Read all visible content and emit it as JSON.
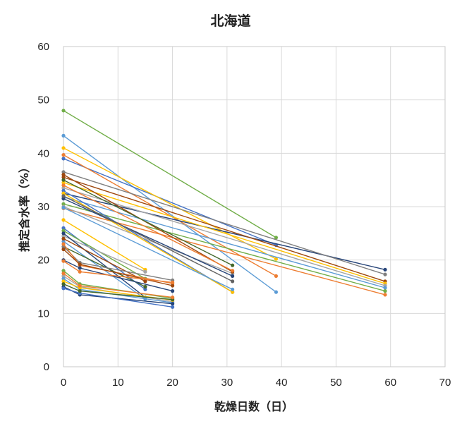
{
  "chart_data": {
    "type": "line",
    "title": "北海道",
    "xlabel": "乾燥日数（日）",
    "ylabel": "推定含水率（%）",
    "xlim": [
      0,
      70
    ],
    "ylim": [
      0,
      60
    ],
    "xticks": [
      0,
      10,
      20,
      30,
      40,
      50,
      60,
      70
    ],
    "yticks": [
      0,
      10,
      20,
      30,
      40,
      50,
      60
    ],
    "grid": true,
    "legend": "none",
    "series": [
      {
        "color": "#70ad47",
        "points": [
          [
            0,
            48
          ],
          [
            39,
            24.2
          ]
        ]
      },
      {
        "color": "#5b9bd5",
        "points": [
          [
            0,
            43.3
          ],
          [
            39,
            14
          ]
        ]
      },
      {
        "color": "#4472c4",
        "points": [
          [
            0,
            39
          ],
          [
            39,
            22.8
          ]
        ]
      },
      {
        "color": "#ffc000",
        "points": [
          [
            0,
            41
          ],
          [
            39,
            20.2
          ]
        ]
      },
      {
        "color": "#ed7d31",
        "points": [
          [
            0,
            39.7
          ],
          [
            39,
            17
          ]
        ]
      },
      {
        "color": "#264478",
        "points": [
          [
            0,
            32.5
          ],
          [
            59,
            18.2
          ]
        ]
      },
      {
        "color": "#7f7f7f",
        "points": [
          [
            0,
            36.5
          ],
          [
            59,
            17.3
          ]
        ]
      },
      {
        "color": "#9e480e",
        "points": [
          [
            0,
            35.5
          ],
          [
            59,
            16
          ]
        ]
      },
      {
        "color": "#ffc000",
        "points": [
          [
            0,
            34.5
          ],
          [
            59,
            15.6
          ]
        ]
      },
      {
        "color": "#a5a5a5",
        "points": [
          [
            0,
            33.5
          ],
          [
            59,
            15.2
          ]
        ]
      },
      {
        "color": "#5b9bd5",
        "points": [
          [
            0,
            31.8
          ],
          [
            59,
            14.8
          ]
        ]
      },
      {
        "color": "#70ad47",
        "points": [
          [
            0,
            30.5
          ],
          [
            59,
            14.2
          ]
        ]
      },
      {
        "color": "#ed7d31",
        "points": [
          [
            0,
            29.7
          ],
          [
            59,
            13.5
          ]
        ]
      },
      {
        "color": "#4472c4",
        "points": [
          [
            0,
            33
          ],
          [
            31,
            14
          ]
        ]
      },
      {
        "color": "#a5a5a5",
        "points": [
          [
            0,
            30
          ],
          [
            31,
            17.5
          ]
        ]
      },
      {
        "color": "#ffc000",
        "points": [
          [
            0,
            32.5
          ],
          [
            31,
            14
          ]
        ]
      },
      {
        "color": "#264478",
        "points": [
          [
            0,
            31.5
          ],
          [
            31,
            17
          ]
        ]
      },
      {
        "color": "#9e480e",
        "points": [
          [
            0,
            36
          ],
          [
            31,
            17.8
          ]
        ]
      },
      {
        "color": "#5b9bd5",
        "points": [
          [
            0,
            29.8
          ],
          [
            31,
            14.5
          ]
        ]
      },
      {
        "color": "#43682b",
        "points": [
          [
            0,
            35
          ],
          [
            31,
            19
          ]
        ]
      },
      {
        "color": "#636363",
        "points": [
          [
            0,
            32
          ],
          [
            31,
            16
          ]
        ]
      },
      {
        "color": "#ed7d31",
        "points": [
          [
            0,
            34
          ],
          [
            31,
            18
          ]
        ]
      },
      {
        "color": "#ffc000",
        "points": [
          [
            0,
            27.5
          ],
          [
            15,
            18.2
          ]
        ]
      },
      {
        "color": "#4472c4",
        "points": [
          [
            0,
            26
          ],
          [
            15,
            14.5
          ]
        ]
      },
      {
        "color": "#70ad47",
        "points": [
          [
            0,
            25.5
          ],
          [
            15,
            16.5
          ]
        ]
      },
      {
        "color": "#a5a5a5",
        "points": [
          [
            0,
            24.5
          ],
          [
            15,
            17.8
          ]
        ]
      },
      {
        "color": "#264478",
        "points": [
          [
            0,
            25
          ],
          [
            15,
            13
          ]
        ]
      },
      {
        "color": "#5b9bd5",
        "points": [
          [
            0,
            23.5
          ],
          [
            15,
            12.7
          ]
        ]
      },
      {
        "color": "#43682b",
        "points": [
          [
            0,
            22.5
          ],
          [
            15,
            15
          ]
        ]
      },
      {
        "color": "#9e480e",
        "points": [
          [
            0,
            24
          ],
          [
            15,
            16
          ]
        ]
      },
      {
        "color": "#7f7f7f",
        "points": [
          [
            0,
            22.5
          ],
          [
            3,
            19.5
          ],
          [
            20,
            16.2
          ]
        ]
      },
      {
        "color": "#ed7d31",
        "points": [
          [
            0,
            23
          ],
          [
            3,
            19
          ],
          [
            20,
            15.6
          ]
        ]
      },
      {
        "color": "#9e480e",
        "points": [
          [
            0,
            22
          ],
          [
            3,
            19.2
          ],
          [
            20,
            15.2
          ]
        ]
      },
      {
        "color": "#264478",
        "points": [
          [
            0,
            20
          ],
          [
            3,
            18.5
          ],
          [
            20,
            14.2
          ]
        ]
      },
      {
        "color": "#ed7d31",
        "points": [
          [
            0,
            19.8
          ],
          [
            3,
            17.8
          ],
          [
            20,
            15.8
          ]
        ]
      },
      {
        "color": "#70ad47",
        "points": [
          [
            0,
            18
          ],
          [
            3,
            15.5
          ],
          [
            20,
            12.8
          ]
        ]
      },
      {
        "color": "#a5a5a5",
        "points": [
          [
            0,
            17
          ],
          [
            3,
            15
          ],
          [
            20,
            12.2
          ]
        ]
      },
      {
        "color": "#5b9bd5",
        "points": [
          [
            0,
            16.5
          ],
          [
            3,
            14.5
          ],
          [
            20,
            12
          ]
        ]
      },
      {
        "color": "#ffc000",
        "points": [
          [
            0,
            16
          ],
          [
            3,
            14.8
          ],
          [
            20,
            12.5
          ]
        ]
      },
      {
        "color": "#264478",
        "points": [
          [
            0,
            15
          ],
          [
            3,
            13.5
          ],
          [
            20,
            11.8
          ]
        ]
      },
      {
        "color": "#4472c4",
        "points": [
          [
            0,
            14.7
          ],
          [
            3,
            13.8
          ],
          [
            20,
            11.2
          ]
        ]
      },
      {
        "color": "#43682b",
        "points": [
          [
            0,
            15.5
          ],
          [
            3,
            14.2
          ],
          [
            20,
            12.6
          ]
        ]
      },
      {
        "color": "#ed7d31",
        "points": [
          [
            0,
            17.5
          ],
          [
            3,
            15.2
          ],
          [
            20,
            13
          ]
        ]
      }
    ]
  }
}
